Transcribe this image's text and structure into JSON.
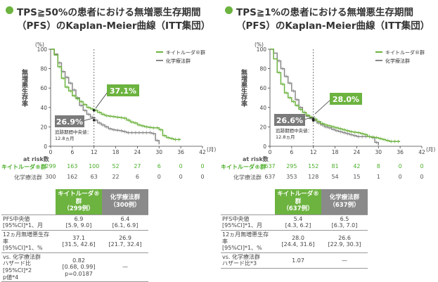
{
  "colors": {
    "keytruda": "#6cb33f",
    "chemo": "#888888",
    "label_box": "#6cb33f",
    "label_box_chemo": "#7a7a7a"
  },
  "left": {
    "title_line1": "TPS≧50%の患者における無増悪生存期間",
    "title_line2": "（PFS）のKaplan-Meier曲線（ITT集団）",
    "y_unit": "(%)",
    "y_label": "無増悪生存率",
    "x_unit": "(月)",
    "x_label": "期間",
    "legend_keytruda": "キイトルーダ®群",
    "legend_chemo": "化学療法群",
    "label_keytruda": "37.1%",
    "label_chemo": "26.9%",
    "median_followup_l1": "追跡期間中央値：",
    "median_followup_l2": "12.8ヵ月",
    "risk_title": "at risk数",
    "risk_keytruda_label": "キイトルーダ®群",
    "risk_chemo_label": "化学療法群",
    "risk_keytruda": [
      "299",
      "163",
      "100",
      "52",
      "27",
      "6",
      "0",
      "0"
    ],
    "risk_chemo": [
      "300",
      "162",
      "63",
      "22",
      "6",
      "0",
      "0",
      "0"
    ],
    "table": {
      "head_keytruda_l1": "キイトルーダ®群",
      "head_keytruda_l2": "（299例）",
      "head_chemo_l1": "化学療法群",
      "head_chemo_l2": "（300例）",
      "row_pfs": {
        "label_l1": "PFS中央値",
        "label_l2": "[95%CI]*1、月",
        "k_l1": "6.9",
        "k_l2": "[5.9, 9.0]",
        "c_l1": "6.4",
        "c_l2": "[6.1, 6.9]"
      },
      "row_12m": {
        "label_l1": "12ヵ月無増悪生存率",
        "label_l2": "[95%CI]*1、%",
        "k_l1": "37.1",
        "k_l2": "[31.5, 42.6]",
        "c_l1": "26.9",
        "c_l2": "[21.7, 32.4]"
      },
      "row_hr": {
        "label_l1": "vs. 化学療法群",
        "label_l2": "ハザード比[95%CI]*2",
        "label_l3": "p値*4",
        "k_l1": "0.82",
        "k_l2": "[0.68, 0.99]",
        "k_l3": "p=0.0187",
        "c_l1": "—"
      }
    }
  },
  "right": {
    "title_line1": "TPS≧1%の患者における無増悪生存期間",
    "title_line2": "（PFS）のKaplan-Meier曲線（ITT集団）",
    "y_unit": "(%)",
    "y_label": "無増悪生存率",
    "x_unit": "(月)",
    "x_label": "期間",
    "legend_keytruda": "キイトルーダ®群",
    "legend_chemo": "化学療法群",
    "label_keytruda": "28.0%",
    "label_chemo": "26.6%",
    "median_followup_l1": "追跡期間中央値：",
    "median_followup_l2": "12.8ヵ月",
    "risk_title": "at risk数",
    "risk_keytruda_label": "キイトルーダ®群",
    "risk_chemo_label": "化学療法群",
    "risk_keytruda": [
      "637",
      "295",
      "152",
      "81",
      "42",
      "8",
      "0",
      "0"
    ],
    "risk_chemo": [
      "637",
      "353",
      "128",
      "54",
      "15",
      "1",
      "0",
      "0"
    ],
    "table": {
      "head_keytruda_l1": "キイトルーダ®群",
      "head_keytruda_l2": "（637例）",
      "head_chemo_l1": "化学療法群",
      "head_chemo_l2": "（637例）",
      "row_pfs": {
        "label_l1": "PFS中央値",
        "label_l2": "[95%CI]*1、月",
        "k_l1": "5.4",
        "k_l2": "[4.3, 6.2]",
        "c_l1": "6.5",
        "c_l2": "[6.3, 7.0]"
      },
      "row_12m": {
        "label_l1": "12ヵ月無増悪生存率",
        "label_l2": "[95%CI]*1、%",
        "k_l1": "28.0",
        "k_l2": "[24.4, 31.6]",
        "c_l1": "26.6",
        "c_l2": "[22.9, 30.3]"
      },
      "row_hr": {
        "label_l1": "vs. 化学療法群",
        "label_l2": "ハザード比*3",
        "k_l1": "1.07",
        "c_l1": "—"
      }
    }
  },
  "chart_data": [
    {
      "type": "line",
      "title": "TPS≧50%の患者における無増悪生存期間（PFS）のKaplan-Meier曲線（ITT集団）",
      "xlabel": "期間",
      "ylabel": "無増悪生存率",
      "x_ticks": [
        0,
        6,
        12,
        18,
        24,
        30,
        36,
        42
      ],
      "y_ticks": [
        0,
        20,
        40,
        60,
        80,
        100
      ],
      "xlim": [
        0,
        42
      ],
      "ylim": [
        0,
        100
      ],
      "legend": "top-right",
      "reference_x": 12,
      "series": [
        {
          "name": "キイトルーダ®群",
          "x": [
            0,
            1,
            2,
            3,
            4,
            5,
            6,
            7,
            8,
            9,
            10,
            11,
            12,
            13,
            14,
            15,
            16,
            17,
            18,
            19,
            20,
            21,
            22,
            23,
            24,
            25,
            26,
            27,
            28,
            29,
            30,
            31,
            32,
            33,
            34,
            35,
            36
          ],
          "y": [
            100,
            94,
            82,
            70,
            61,
            57,
            52,
            49,
            46,
            43,
            40,
            38.5,
            37.1,
            35,
            33,
            31.5,
            31,
            30.5,
            30,
            29.5,
            29,
            27,
            25,
            24,
            22,
            21,
            20,
            19.5,
            19,
            19,
            17,
            11,
            9,
            8,
            7,
            7,
            7
          ]
        },
        {
          "name": "化学療法群",
          "x": [
            0,
            1,
            2,
            3,
            4,
            5,
            6,
            7,
            8,
            9,
            10,
            11,
            12,
            13,
            14,
            15,
            16,
            17,
            18,
            19,
            20,
            21,
            22,
            23,
            24,
            25,
            26,
            27,
            28,
            29,
            30
          ],
          "y": [
            100,
            95,
            86,
            77,
            71,
            65,
            58,
            50,
            42,
            37,
            33,
            30,
            26.9,
            24,
            22,
            20,
            18,
            17,
            16.5,
            16,
            15,
            14,
            14,
            14,
            14,
            14,
            14,
            14,
            13,
            6,
            2
          ]
        }
      ]
    },
    {
      "type": "line",
      "title": "TPS≧1%の患者における無増悪生存期間（PFS）のKaplan-Meier曲線（ITT集団）",
      "xlabel": "期間",
      "ylabel": "無増悪生存率",
      "x_ticks": [
        0,
        6,
        12,
        18,
        24,
        30,
        36,
        42
      ],
      "y_ticks": [
        0,
        20,
        40,
        60,
        80,
        100
      ],
      "xlim": [
        0,
        42
      ],
      "ylim": [
        0,
        100
      ],
      "legend": "top-right",
      "reference_x": 12,
      "series": [
        {
          "name": "キイトルーダ®群",
          "x": [
            0,
            1,
            2,
            3,
            4,
            5,
            6,
            7,
            8,
            9,
            10,
            11,
            12,
            13,
            14,
            15,
            16,
            17,
            18,
            19,
            20,
            21,
            22,
            23,
            24,
            25,
            26,
            27,
            28,
            29,
            30,
            31,
            32,
            33,
            34,
            35,
            36
          ],
          "y": [
            100,
            90,
            76,
            64,
            55,
            50,
            46,
            42,
            38,
            35,
            32,
            30,
            28,
            25.5,
            23.5,
            22,
            21,
            20,
            19,
            18,
            17,
            16,
            15,
            14.5,
            14,
            13,
            12,
            10,
            9.5,
            9,
            8,
            7,
            6,
            5,
            5,
            5,
            5
          ]
        },
        {
          "name": "化学療法群",
          "x": [
            0,
            1,
            2,
            3,
            4,
            5,
            6,
            7,
            8,
            9,
            10,
            11,
            12,
            13,
            14,
            15,
            16,
            17,
            18,
            19,
            20,
            21,
            22,
            23,
            24,
            25,
            26,
            27,
            28,
            29,
            30
          ],
          "y": [
            100,
            96,
            88,
            80,
            72,
            65,
            57,
            48,
            40,
            35,
            31,
            28.5,
            26.6,
            24,
            22,
            20,
            19,
            17.5,
            16,
            15,
            14,
            13,
            12,
            11,
            10,
            10,
            10,
            10,
            9,
            4,
            1
          ]
        }
      ]
    }
  ]
}
